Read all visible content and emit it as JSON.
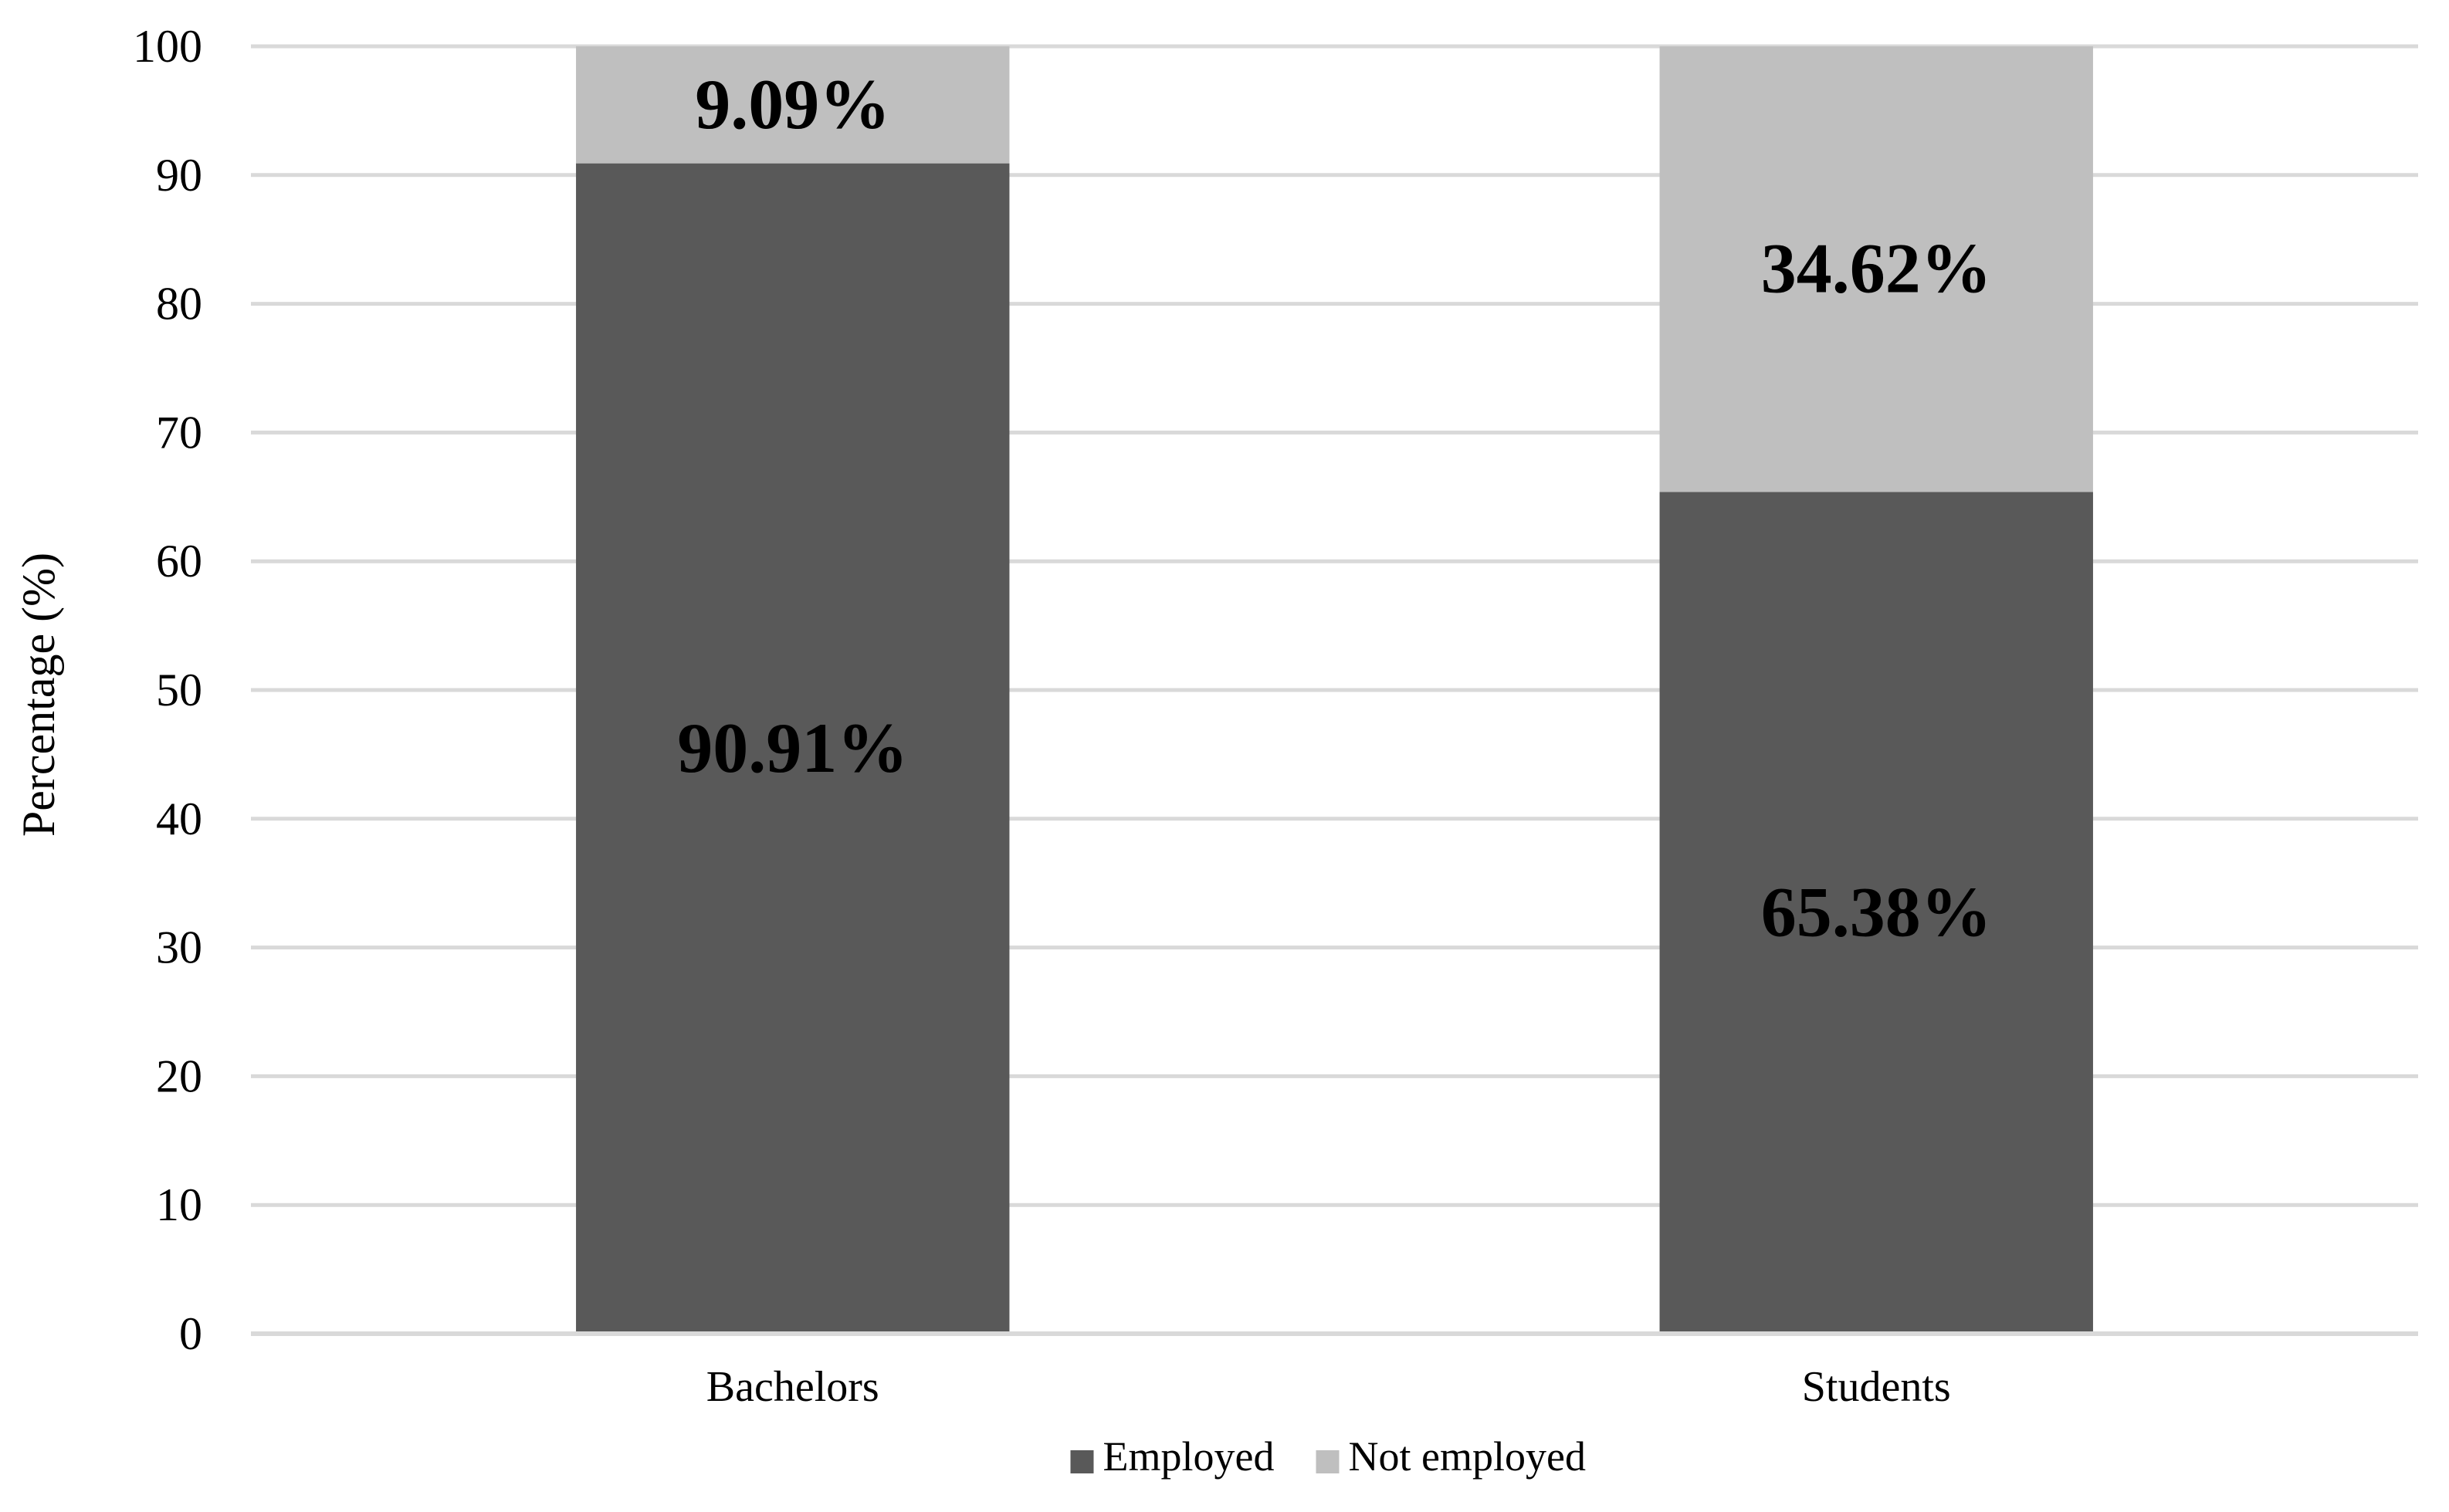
{
  "chart_data": {
    "type": "bar",
    "stacked": true,
    "title": "",
    "xlabel": "",
    "ylabel": "Percentage (%)",
    "ylim": [
      0,
      100
    ],
    "yticks": [
      0,
      10,
      20,
      30,
      40,
      50,
      60,
      70,
      80,
      90,
      100
    ],
    "grid": true,
    "legend_position": "bottom",
    "categories": [
      "Bachelors",
      "Students"
    ],
    "series": [
      {
        "name": "Employed",
        "color": "#595959",
        "values": [
          90.91,
          65.38
        ],
        "labels": [
          "90.91%",
          "65.38%"
        ]
      },
      {
        "name": "Not employed",
        "color": "#bfbfbf",
        "values": [
          9.09,
          34.62
        ],
        "labels": [
          "9.09%",
          "34.62%"
        ]
      }
    ],
    "colors": {
      "grid": "#d9d9d9",
      "text": "#000000"
    }
  }
}
